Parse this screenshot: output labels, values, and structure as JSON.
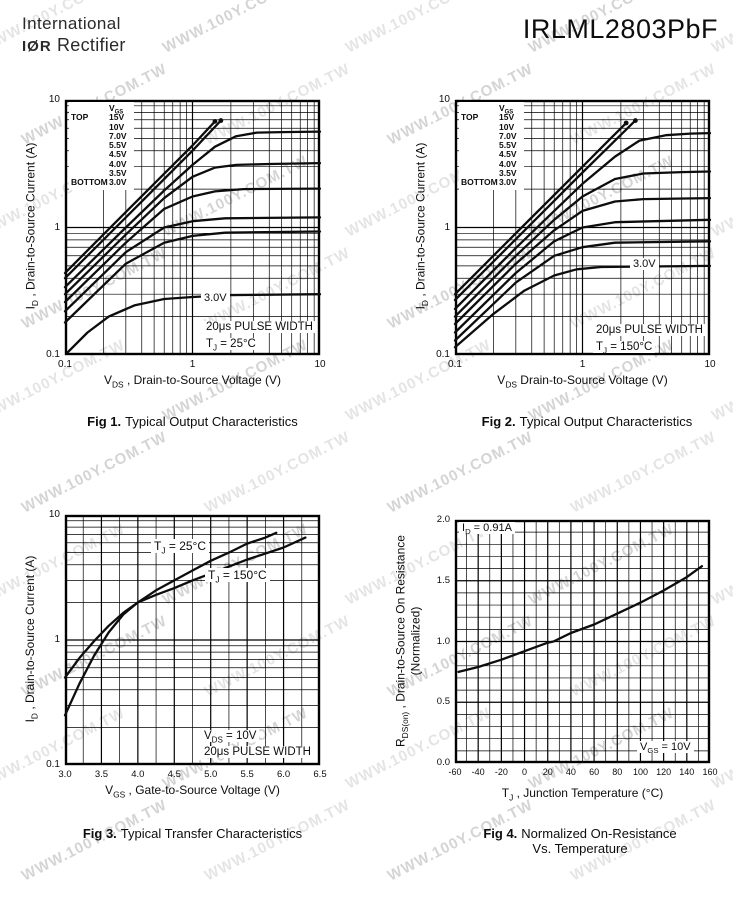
{
  "page": {
    "logo": {
      "line1": "International",
      "mark": "IØR",
      "line2": "Rectifier"
    },
    "title": "IRLML2803PbF",
    "watermark": {
      "text": "WWW.100Y.COM.TW"
    }
  },
  "figures": [
    {
      "caption_label": "Fig 1.",
      "caption_text": "Typical Output Characteristics",
      "xlabel": {
        "pre": "V",
        "sub": "DS",
        "post": " , Drain-to-Source Voltage (V)"
      },
      "ylabel": {
        "pre": "I",
        "sub": "D",
        "post": " , Drain-to-Source Current (A)"
      },
      "legend": {
        "header_pre": "V",
        "header_sub": "GS",
        "top": "TOP",
        "bottom": "BOTTOM",
        "values": [
          "15V",
          "10V",
          "7.0V",
          "5.5V",
          "4.5V",
          "4.0V",
          "3.5V",
          "3.0V"
        ]
      },
      "curve_label": "3.0V",
      "cond1": "20μs PULSE WIDTH",
      "cond2": {
        "pre": "T",
        "sub": "J",
        "post": " = 25°C"
      }
    },
    {
      "caption_label": "Fig 2.",
      "caption_text": "Typical Output Characteristics",
      "xlabel": {
        "pre": "V",
        "sub": "DS",
        "post": " Drain-to-Source Voltage (V)"
      },
      "ylabel": {
        "pre": "I",
        "sub": "D",
        "post": " , Drain-to-Source Current (A)"
      },
      "legend": {
        "header_pre": "V",
        "header_sub": "GS",
        "top": "TOP",
        "bottom": "BOTTOM",
        "values": [
          "15V",
          "10V",
          "7.0V",
          "5.5V",
          "4.5V",
          "4.0V",
          "3.5V",
          "3.0V"
        ]
      },
      "curve_label": "3.0V",
      "cond1": "20μs PULSE WIDTH",
      "cond2": {
        "pre": "T",
        "sub": "J",
        "post": " = 150°C"
      }
    },
    {
      "caption_label": "Fig 3.",
      "caption_text": "Typical Transfer Characteristics",
      "xlabel": {
        "pre": "V",
        "sub": "GS",
        "post": " , Gate-to-Source Voltage (V)"
      },
      "ylabel": {
        "pre": "I",
        "sub": "D",
        "post": " , Drain-to-Source Current (A)"
      },
      "ann_25": {
        "pre": "T",
        "sub": "J",
        "post": " = 25°C"
      },
      "ann_150": {
        "pre": "T",
        "sub": "J",
        "post": " = 150°C"
      },
      "cond1": {
        "pre": "V",
        "sub": "DS",
        "post": " = 10V"
      },
      "cond2": "20μs PULSE WIDTH"
    },
    {
      "caption_label": "Fig 4.",
      "caption_text": "Normalized On-Resistance",
      "caption_text2": "Vs. Temperature",
      "xlabel": {
        "pre": "T",
        "sub": "J",
        "post": " , Junction Temperature (°C)"
      },
      "ylabel_line1": {
        "pre": "R",
        "sub": "DS(on)",
        "post": " , Drain-to-Source On Resistance"
      },
      "ylabel_line2": "(Normalized)",
      "ann_id": {
        "pre": "I",
        "sub": "D",
        "post": " = 0.91A"
      },
      "cond": {
        "pre": "V",
        "sub": "GS",
        "post": " = 10V"
      }
    }
  ],
  "chart_data": [
    {
      "type": "line",
      "title": "Fig 1. Typical Output Characteristics",
      "xlabel": "VDS, Drain-to-Source Voltage (V)",
      "ylabel": "ID, Drain-to-Source Current (A)",
      "annotations": [
        "VGS legend TOP 15V to BOTTOM 3.0V",
        "20μs PULSE WIDTH",
        "TJ = 25°C"
      ],
      "grid": true,
      "legend_position": "top-left-list",
      "x": {
        "scale": "log",
        "min": 0.1,
        "max": 10,
        "ticks": [
          {
            "v": 0.1,
            "l": "0.1"
          },
          {
            "v": 1,
            "l": "1"
          },
          {
            "v": 10,
            "l": "10"
          }
        ]
      },
      "y": {
        "scale": "log",
        "min": 0.1,
        "max": 10,
        "ticks": [
          {
            "v": 10,
            "l": "10"
          },
          {
            "v": 1,
            "l": "1"
          },
          {
            "v": 0.1,
            "l": "0.1"
          }
        ]
      },
      "series": [
        {
          "name": "VGS = 15V",
          "dot": true,
          "points": [
            [
              0.1,
              0.44
            ],
            [
              0.3,
              1.32
            ],
            [
              0.6,
              2.64
            ],
            [
              1.0,
              4.4
            ],
            [
              1.5,
              6.8
            ]
          ]
        },
        {
          "name": "VGS = 10V",
          "dot": true,
          "points": [
            [
              0.1,
              0.4
            ],
            [
              0.3,
              1.2
            ],
            [
              0.6,
              2.4
            ],
            [
              1.0,
              4.0
            ],
            [
              1.67,
              6.9
            ]
          ]
        },
        {
          "name": "VGS = 7.0V",
          "points": [
            [
              0.1,
              0.34
            ],
            [
              0.3,
              1.0
            ],
            [
              0.6,
              1.95
            ],
            [
              1.0,
              3.1
            ],
            [
              1.5,
              4.3
            ],
            [
              2.2,
              5.2
            ],
            [
              3.2,
              5.55
            ],
            [
              5,
              5.6
            ],
            [
              10,
              5.65
            ]
          ]
        },
        {
          "name": "VGS = 5.5V",
          "points": [
            [
              0.1,
              0.3
            ],
            [
              0.3,
              0.88
            ],
            [
              0.6,
              1.7
            ],
            [
              1.0,
              2.5
            ],
            [
              1.5,
              2.95
            ],
            [
              2.2,
              3.1
            ],
            [
              4,
              3.15
            ],
            [
              10,
              3.2
            ]
          ]
        },
        {
          "name": "VGS = 4.5V",
          "points": [
            [
              0.1,
              0.26
            ],
            [
              0.3,
              0.76
            ],
            [
              0.6,
              1.4
            ],
            [
              1.0,
              1.75
            ],
            [
              1.5,
              1.92
            ],
            [
              2.5,
              2.0
            ],
            [
              10,
              2.02
            ]
          ]
        },
        {
          "name": "VGS = 4.0V",
          "points": [
            [
              0.1,
              0.22
            ],
            [
              0.3,
              0.64
            ],
            [
              0.6,
              1.0
            ],
            [
              1.0,
              1.12
            ],
            [
              1.8,
              1.18
            ],
            [
              10,
              1.2
            ]
          ]
        },
        {
          "name": "VGS = 3.5V",
          "points": [
            [
              0.1,
              0.18
            ],
            [
              0.3,
              0.52
            ],
            [
              0.6,
              0.76
            ],
            [
              1.0,
              0.86
            ],
            [
              1.8,
              0.91
            ],
            [
              10,
              0.93
            ]
          ]
        },
        {
          "name": "VGS = 3.0V",
          "points": [
            [
              0.105,
              0.105
            ],
            [
              0.15,
              0.15
            ],
            [
              0.22,
              0.2
            ],
            [
              0.35,
              0.245
            ],
            [
              0.6,
              0.275
            ],
            [
              1.0,
              0.285
            ],
            [
              2,
              0.295
            ],
            [
              10,
              0.3
            ]
          ]
        }
      ]
    },
    {
      "type": "line",
      "title": "Fig 2. Typical Output Characteristics",
      "xlabel": "VDS Drain-to-Source Voltage (V)",
      "ylabel": "ID, Drain-to-Source Current (A)",
      "annotations": [
        "VGS legend TOP 15V to BOTTOM 3.0V",
        "20μs PULSE WIDTH",
        "TJ = 150°C"
      ],
      "grid": true,
      "legend_position": "top-left-list",
      "x": {
        "scale": "log",
        "min": 0.1,
        "max": 10,
        "ticks": [
          {
            "v": 0.1,
            "l": "0.1"
          },
          {
            "v": 1,
            "l": "1"
          },
          {
            "v": 10,
            "l": "10"
          }
        ]
      },
      "y": {
        "scale": "log",
        "min": 0.1,
        "max": 10,
        "ticks": [
          {
            "v": 10,
            "l": "10"
          },
          {
            "v": 1,
            "l": "1"
          },
          {
            "v": 0.1,
            "l": "0.1"
          }
        ]
      },
      "series": [
        {
          "name": "VGS = 15V",
          "dot": true,
          "points": [
            [
              0.1,
              0.3
            ],
            [
              0.3,
              0.9
            ],
            [
              0.6,
              1.8
            ],
            [
              1.0,
              3.0
            ],
            [
              1.6,
              4.8
            ],
            [
              2.2,
              6.6
            ]
          ]
        },
        {
          "name": "VGS = 10V",
          "dot": true,
          "points": [
            [
              0.1,
              0.27
            ],
            [
              0.3,
              0.81
            ],
            [
              0.6,
              1.62
            ],
            [
              1.0,
              2.7
            ],
            [
              1.8,
              4.8
            ],
            [
              2.6,
              6.9
            ]
          ]
        },
        {
          "name": "VGS = 7.0V",
          "points": [
            [
              0.1,
              0.23
            ],
            [
              0.3,
              0.69
            ],
            [
              0.6,
              1.35
            ],
            [
              1.0,
              2.2
            ],
            [
              1.8,
              3.6
            ],
            [
              2.8,
              4.8
            ],
            [
              4.5,
              5.3
            ],
            [
              7,
              5.45
            ],
            [
              10,
              5.5
            ]
          ]
        },
        {
          "name": "VGS = 5.5V",
          "points": [
            [
              0.1,
              0.2
            ],
            [
              0.3,
              0.6
            ],
            [
              0.6,
              1.15
            ],
            [
              1.0,
              1.75
            ],
            [
              1.8,
              2.4
            ],
            [
              3,
              2.65
            ],
            [
              6,
              2.72
            ],
            [
              10,
              2.75
            ]
          ]
        },
        {
          "name": "VGS = 4.5V",
          "points": [
            [
              0.1,
              0.175
            ],
            [
              0.3,
              0.52
            ],
            [
              0.6,
              0.95
            ],
            [
              1.0,
              1.35
            ],
            [
              1.8,
              1.6
            ],
            [
              3,
              1.67
            ],
            [
              10,
              1.7
            ]
          ]
        },
        {
          "name": "VGS = 4.0V",
          "points": [
            [
              0.1,
              0.15
            ],
            [
              0.3,
              0.44
            ],
            [
              0.6,
              0.78
            ],
            [
              1.0,
              1.0
            ],
            [
              1.8,
              1.1
            ],
            [
              10,
              1.15
            ]
          ]
        },
        {
          "name": "VGS = 3.5V",
          "points": [
            [
              0.1,
              0.13
            ],
            [
              0.3,
              0.37
            ],
            [
              0.6,
              0.6
            ],
            [
              1.0,
              0.7
            ],
            [
              1.8,
              0.76
            ],
            [
              10,
              0.78
            ]
          ]
        },
        {
          "name": "VGS = 3.0V",
          "points": [
            [
              0.1,
              0.115
            ],
            [
              0.2,
              0.21
            ],
            [
              0.35,
              0.32
            ],
            [
              0.6,
              0.42
            ],
            [
              0.9,
              0.47
            ],
            [
              1.4,
              0.49
            ],
            [
              10,
              0.5
            ]
          ]
        }
      ]
    },
    {
      "type": "line",
      "title": "Fig 3. Typical Transfer Characteristics",
      "xlabel": "VGS, Gate-to-Source Voltage (V)",
      "ylabel": "ID, Drain-to-Source Current (A)",
      "annotations": [
        "TJ = 25°C",
        "TJ = 150°C",
        "VDS = 10V",
        "20μs PULSE WIDTH"
      ],
      "grid": true,
      "x": {
        "scale": "linear",
        "min": 3.0,
        "max": 6.5,
        "minor": 0.25,
        "ticks": [
          {
            "v": 3.0,
            "l": "3.0"
          },
          {
            "v": 3.5,
            "l": "3.5"
          },
          {
            "v": 4.0,
            "l": "4.0"
          },
          {
            "v": 4.5,
            "l": "4.5"
          },
          {
            "v": 5.0,
            "l": "5.0"
          },
          {
            "v": 5.5,
            "l": "5.5"
          },
          {
            "v": 6.0,
            "l": "6.0"
          },
          {
            "v": 6.5,
            "l": "6.5"
          }
        ]
      },
      "y": {
        "scale": "log",
        "min": 0.1,
        "max": 10,
        "ticks": [
          {
            "v": 10,
            "l": "10"
          },
          {
            "v": 1,
            "l": "1"
          },
          {
            "v": 0.1,
            "l": "0.1"
          }
        ]
      },
      "series": [
        {
          "name": "TJ = 25°C",
          "points": [
            [
              3.0,
              0.25
            ],
            [
              3.2,
              0.45
            ],
            [
              3.4,
              0.75
            ],
            [
              3.6,
              1.15
            ],
            [
              3.8,
              1.6
            ],
            [
              4.0,
              2.0
            ],
            [
              4.25,
              2.5
            ],
            [
              4.5,
              3.0
            ],
            [
              4.75,
              3.6
            ],
            [
              5.0,
              4.3
            ],
            [
              5.25,
              5.0
            ],
            [
              5.5,
              5.9
            ],
            [
              5.75,
              6.6
            ],
            [
              5.9,
              7.2
            ]
          ]
        },
        {
          "name": "TJ = 150°C",
          "points": [
            [
              3.0,
              0.5
            ],
            [
              3.2,
              0.72
            ],
            [
              3.4,
              0.98
            ],
            [
              3.6,
              1.3
            ],
            [
              3.8,
              1.65
            ],
            [
              4.0,
              2.0
            ],
            [
              4.25,
              2.3
            ],
            [
              4.5,
              2.6
            ],
            [
              4.75,
              3.0
            ],
            [
              5.0,
              3.4
            ],
            [
              5.5,
              4.4
            ],
            [
              6.0,
              5.5
            ],
            [
              6.3,
              6.6
            ]
          ]
        }
      ]
    },
    {
      "type": "line",
      "title": "Fig 4. Normalized On-Resistance Vs. Temperature",
      "xlabel": "TJ, Junction Temperature (°C)",
      "ylabel": "RDS(on), Drain-to-Source On Resistance (Normalized)",
      "annotations": [
        "ID = 0.91A",
        "VGS = 10V"
      ],
      "grid": true,
      "x": {
        "scale": "linear",
        "min": -60,
        "max": 160,
        "minor": 10,
        "ticks": [
          {
            "v": -60,
            "l": "-60"
          },
          {
            "v": -40,
            "l": "-40"
          },
          {
            "v": -20,
            "l": "-20"
          },
          {
            "v": 0,
            "l": "0"
          },
          {
            "v": 20,
            "l": "20"
          },
          {
            "v": 40,
            "l": "40"
          },
          {
            "v": 60,
            "l": "60"
          },
          {
            "v": 80,
            "l": "80"
          },
          {
            "v": 100,
            "l": "100"
          },
          {
            "v": 120,
            "l": "120"
          },
          {
            "v": 140,
            "l": "140"
          },
          {
            "v": 160,
            "l": "160"
          }
        ]
      },
      "y": {
        "scale": "linear",
        "min": 0.0,
        "max": 2.0,
        "minor": 0.1,
        "ticks": [
          {
            "v": 2.0,
            "l": "2.0"
          },
          {
            "v": 1.5,
            "l": "1.5"
          },
          {
            "v": 1.0,
            "l": "1.0"
          },
          {
            "v": 0.5,
            "l": "0.5"
          },
          {
            "v": 0.0,
            "l": "0.0"
          }
        ]
      },
      "series": [
        {
          "name": "RDS(on) normalized",
          "points": [
            [
              -57,
              0.75
            ],
            [
              -40,
              0.79
            ],
            [
              -20,
              0.85
            ],
            [
              0,
              0.92
            ],
            [
              20,
              0.99
            ],
            [
              25,
              1.0
            ],
            [
              40,
              1.07
            ],
            [
              60,
              1.14
            ],
            [
              80,
              1.23
            ],
            [
              100,
              1.32
            ],
            [
              120,
              1.42
            ],
            [
              140,
              1.53
            ],
            [
              153,
              1.62
            ]
          ]
        }
      ]
    }
  ]
}
